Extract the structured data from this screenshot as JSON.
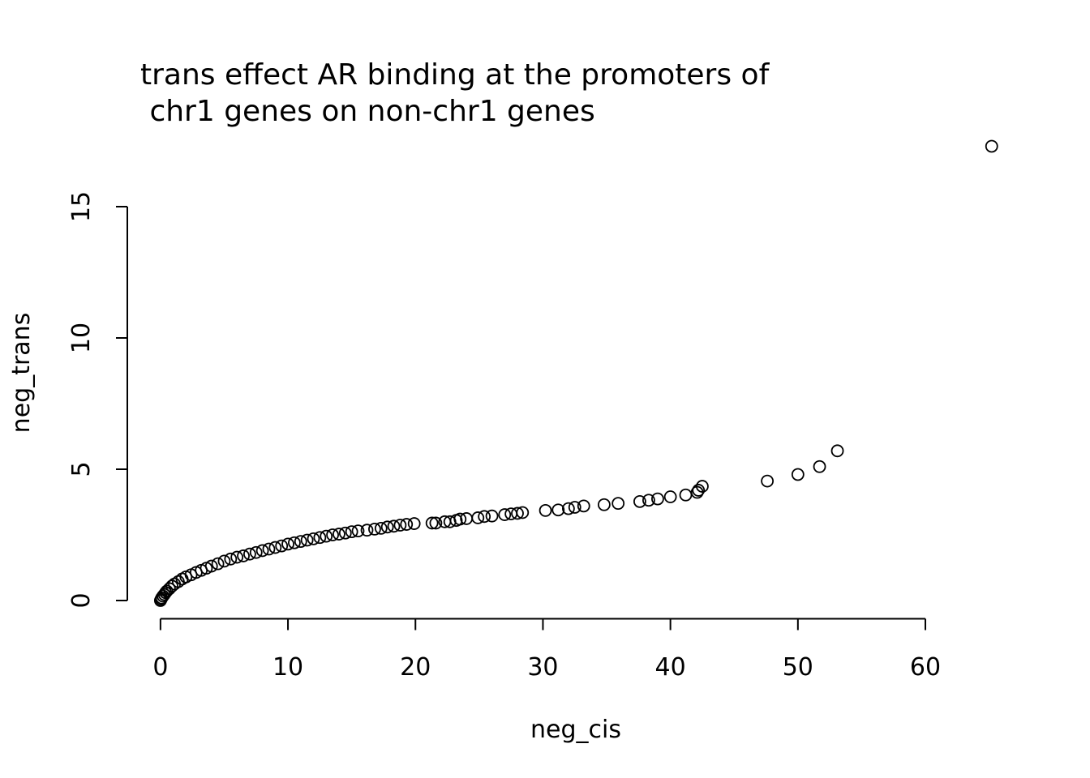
{
  "chart_data": {
    "type": "scatter",
    "title": [
      "trans effect AR binding at the promoters of",
      " chr1 genes on non-chr1 genes"
    ],
    "x_label": "neg_cis",
    "y_label": "neg_trans",
    "x": [
      0,
      0.05,
      0.1,
      0.2,
      0.3,
      0.4,
      0.5,
      0.7,
      0.9,
      1.1,
      1.4,
      1.7,
      2,
      2.4,
      2.8,
      3.2,
      3.6,
      4,
      4.5,
      5,
      5.5,
      6,
      6.5,
      7,
      7.5,
      8,
      8.5,
      9,
      9.5,
      10,
      10.5,
      11,
      11.5,
      12,
      12.5,
      13,
      13.5,
      14,
      14.5,
      15,
      15.5,
      16.2,
      16.8,
      17.3,
      17.8,
      18.3,
      18.8,
      19.3,
      19.9,
      21.3,
      21.6,
      22.3,
      22.7,
      23.2,
      23.5,
      24,
      24.9,
      25.4,
      26,
      27,
      27.5,
      28,
      28.4,
      30.2,
      31.2,
      32,
      32.5,
      33.2,
      34.8,
      35.9,
      37.6,
      38.3,
      39,
      40,
      41.2,
      42.1,
      42.2,
      42.5,
      47.6,
      50,
      51.7,
      53.1,
      65.2
    ],
    "values": [
      0,
      0.05,
      0.1,
      0.17,
      0.23,
      0.3,
      0.36,
      0.45,
      0.55,
      0.63,
      0.72,
      0.82,
      0.9,
      0.98,
      1.07,
      1.15,
      1.23,
      1.31,
      1.4,
      1.5,
      1.58,
      1.65,
      1.7,
      1.77,
      1.83,
      1.9,
      1.96,
      2.02,
      2.08,
      2.15,
      2.2,
      2.25,
      2.3,
      2.35,
      2.4,
      2.45,
      2.5,
      2.53,
      2.57,
      2.62,
      2.65,
      2.68,
      2.72,
      2.75,
      2.8,
      2.83,
      2.87,
      2.9,
      2.93,
      2.95,
      2.95,
      3.0,
      3.0,
      3.05,
      3.1,
      3.12,
      3.15,
      3.2,
      3.22,
      3.27,
      3.3,
      3.32,
      3.35,
      3.43,
      3.45,
      3.5,
      3.55,
      3.6,
      3.65,
      3.7,
      3.77,
      3.82,
      3.87,
      3.95,
      4.02,
      4.12,
      4.2,
      4.35,
      4.55,
      4.8,
      5.1,
      5.7,
      17.3
    ],
    "color": "#000000",
    "xlim": [
      -2.6,
      67.76
    ],
    "ylim": [
      -0.694,
      18.04
    ],
    "xticks": [
      0,
      10,
      20,
      30,
      40,
      50,
      60
    ],
    "yticks": [
      0,
      5,
      10,
      15
    ]
  }
}
